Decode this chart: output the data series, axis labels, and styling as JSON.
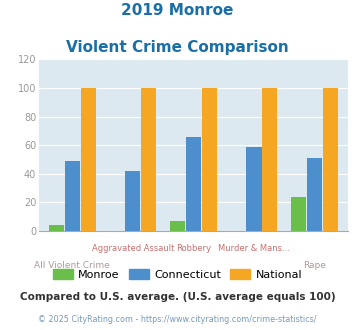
{
  "title_line1": "2019 Monroe",
  "title_line2": "Violent Crime Comparison",
  "categories": [
    "All Violent Crime",
    "Aggravated Assault",
    "Robbery",
    "Murder & Mans...",
    "Rape"
  ],
  "monroe": [
    4,
    0,
    7,
    0,
    24
  ],
  "connecticut": [
    49,
    42,
    66,
    59,
    51
  ],
  "national": [
    100,
    100,
    100,
    100,
    100
  ],
  "monroe_color": "#6abf4b",
  "connecticut_color": "#4d8fcc",
  "national_color": "#f5a623",
  "bg_color": "#dce9f0",
  "ylim": [
    0,
    120
  ],
  "yticks": [
    0,
    20,
    40,
    60,
    80,
    100,
    120
  ],
  "title_color": "#1a6fa8",
  "top_xlabel_color": "#c87070",
  "bot_xlabel_color": "#b09898",
  "axis_color": "#999999",
  "legend_label_monroe": "Monroe",
  "legend_label_connecticut": "Connecticut",
  "legend_label_national": "National",
  "footer_text": "Compared to U.S. average. (U.S. average equals 100)",
  "copyright_text": "© 2025 CityRating.com - https://www.cityrating.com/crime-statistics/",
  "footer_color": "#333333",
  "copyright_color": "#7799bb",
  "top_labels": [
    "",
    "Aggravated Assault",
    "Robbery",
    "Murder & Mans...",
    ""
  ],
  "bot_labels": [
    "All Violent Crime",
    "",
    "",
    "",
    "Rape"
  ]
}
